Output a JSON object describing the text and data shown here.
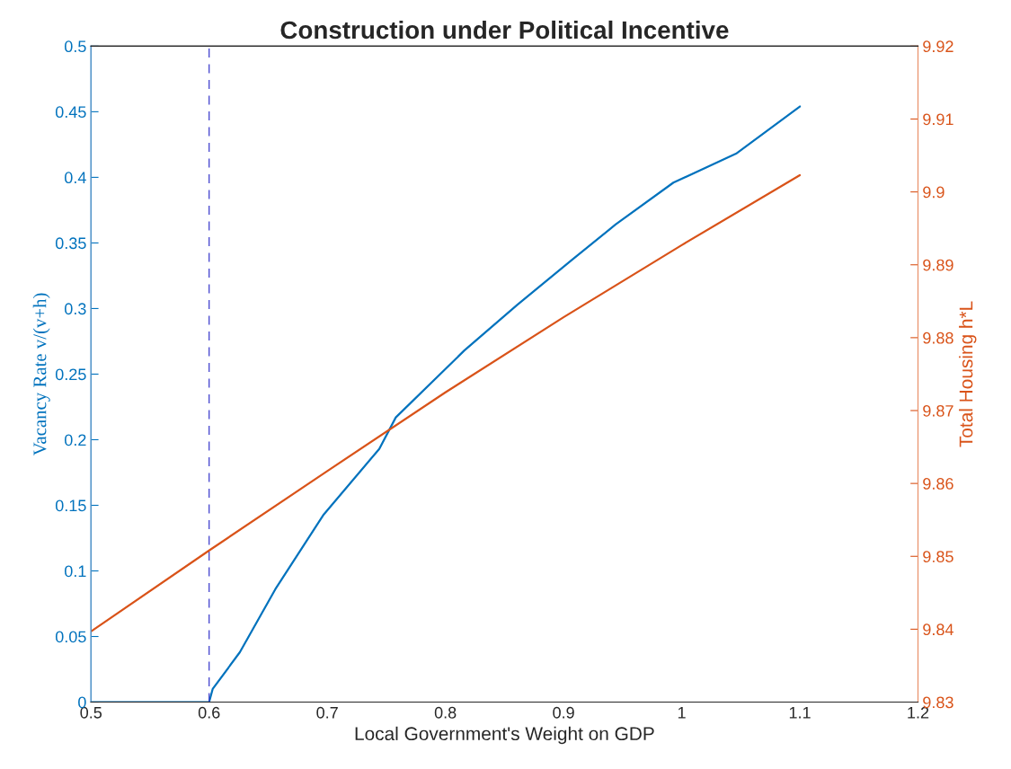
{
  "chart_data": {
    "type": "line",
    "title": "Construction under Political Incentive",
    "xlabel": "Local Government's Weight on GDP",
    "ylabel": "Vacancy Rate v/(v+h)",
    "y2label": "Total Housing h*L",
    "series": [
      {
        "color": "#0072bd",
        "x": [
          0.5,
          0.55,
          0.6,
          0.603,
          0.626,
          0.656,
          0.697,
          0.744,
          0.758,
          0.816,
          0.861,
          0.907,
          0.944,
          0.993,
          1.046,
          1.1
        ],
        "values": [
          0,
          0,
          0,
          0.01,
          0.038,
          0.086,
          0.143,
          0.193,
          0.217,
          0.268,
          0.303,
          0.337,
          0.364,
          0.396,
          0.418,
          0.454
        ]
      },
      {
        "color": "#d95319",
        "axis": "y2",
        "x": [
          0.5,
          0.6,
          0.7,
          0.8,
          0.9,
          1.0,
          1.1
        ],
        "values": [
          9.8397,
          9.8508,
          9.8617,
          9.8725,
          9.8828,
          9.8927,
          9.9023
        ]
      }
    ],
    "ref_lines": [
      {
        "axis": "x",
        "value": 0.6,
        "color": "#3b3bcc",
        "line_style": "dashed"
      }
    ],
    "xlim": [
      0.5,
      1.2
    ],
    "xticks": [
      0.5,
      0.6,
      0.7,
      0.8,
      0.9,
      1,
      1.1,
      1.2
    ],
    "ylim": [
      0,
      0.5
    ],
    "yticks": [
      0,
      0.05,
      0.1,
      0.15,
      0.2,
      0.25,
      0.3,
      0.35,
      0.4,
      0.45,
      0.5
    ],
    "y2lim": [
      9.83,
      9.92
    ],
    "y2ticks": [
      9.83,
      9.84,
      9.85,
      9.86,
      9.87,
      9.88,
      9.89,
      9.9,
      9.91,
      9.92
    ],
    "grid": false,
    "marker": "none",
    "line_style": "solid"
  }
}
